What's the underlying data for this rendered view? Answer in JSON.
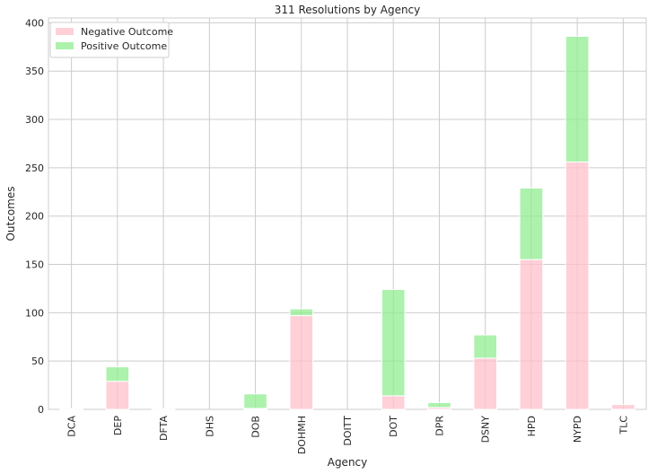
{
  "chart_data": {
    "type": "bar",
    "stacked": true,
    "title": "311 Resolutions by Agency",
    "xlabel": "Agency",
    "ylabel": "Outcomes",
    "ylim": [
      0,
      405
    ],
    "yticks": [
      0,
      50,
      100,
      150,
      200,
      250,
      300,
      350,
      400
    ],
    "grid": true,
    "legend_position": "top-left",
    "categories": [
      "DCA",
      "DEP",
      "DFTA",
      "DHS",
      "DOB",
      "DOHMH",
      "DOITT",
      "DOT",
      "DPR",
      "DSNY",
      "HPD",
      "NYPD",
      "TLC"
    ],
    "series": [
      {
        "name": "Negative Outcome",
        "color": "#ffc0cb",
        "values": [
          0,
          29,
          0,
          0,
          1,
          97,
          0,
          14,
          2,
          53,
          155,
          256,
          5
        ]
      },
      {
        "name": "Positive Outcome",
        "color": "#90ee90",
        "values": [
          1,
          15,
          1,
          0,
          15,
          7,
          0,
          110,
          5,
          24,
          74,
          130,
          0
        ]
      }
    ]
  }
}
